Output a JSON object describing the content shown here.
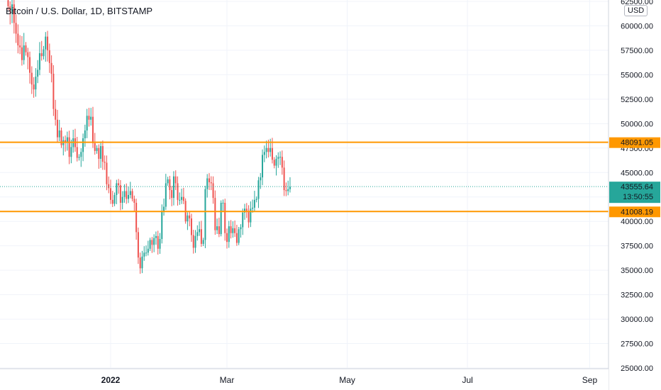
{
  "title": "Bitcoin / U.S. Dollar, 1D, BITSTAMP",
  "currency": "USD",
  "colors": {
    "up": "#26a69a",
    "down": "#ef5350",
    "hline": "#ff9800",
    "last": "#26a69a",
    "grid": "#f0f3fa"
  },
  "chart_data": {
    "type": "candlestick",
    "title": "Bitcoin / U.S. Dollar, 1D, BITSTAMP",
    "ylim": [
      25000,
      62500
    ],
    "y_ticks": [
      "62500.00",
      "60000.00",
      "57500.00",
      "55000.00",
      "52500.00",
      "50000.00",
      "47500.00",
      "45000.00",
      "42500.00",
      "40000.00",
      "37500.00",
      "35000.00",
      "32500.00",
      "30000.00",
      "27500.00",
      "25000.00"
    ],
    "x_ticks": [
      {
        "label": "2022",
        "date": "2022-01-01",
        "bold": true
      },
      {
        "label": "Mar",
        "date": "2022-03-01",
        "bold": false
      },
      {
        "label": "May",
        "date": "2022-05-01",
        "bold": false
      },
      {
        "label": "Jul",
        "date": "2022-07-01",
        "bold": false
      },
      {
        "label": "Sep",
        "date": "2022-09-01",
        "bold": false
      }
    ],
    "horizontal_lines": [
      {
        "price": "48091.05"
      },
      {
        "price": "41008.19"
      }
    ],
    "last_price": {
      "price": "43555.64",
      "countdown": "13:50:55"
    },
    "close_start": 62000,
    "close_dates_start": "2021-11-10",
    "closes": [
      62000,
      61500,
      62200,
      60300,
      59200,
      58000,
      57800,
      56500,
      58000,
      57300,
      56800,
      55200,
      54000,
      53500,
      54800,
      55500,
      57200,
      56900,
      57600,
      58900,
      57500,
      56200,
      55100,
      51500,
      50400,
      48600,
      49300,
      47800,
      48300,
      48100,
      48600,
      46600,
      47600,
      48500,
      47600,
      46500,
      46600,
      47100,
      48500,
      49300,
      50800,
      50400,
      50700,
      48000,
      47200,
      47500,
      46400,
      47700,
      46100,
      46000,
      43800,
      43400,
      42200,
      41800,
      42700,
      43900,
      43700,
      41900,
      42500,
      43100,
      42300,
      42700,
      43100,
      42300,
      41900,
      38900,
      36300,
      35200,
      36400,
      36800,
      36800,
      37200,
      38100,
      37600,
      38300,
      38500,
      37200,
      38200,
      41000,
      41500,
      43900,
      44300,
      43200,
      42400,
      44600,
      43900,
      42200,
      42200,
      42500,
      42100,
      40000,
      40600,
      40300,
      38600,
      37300,
      38500,
      38900,
      39200,
      37700,
      38100,
      43300,
      44400,
      44000,
      43900,
      42400,
      39100,
      39500,
      38700,
      41900,
      41900,
      38800,
      37900,
      39500,
      38800,
      39300,
      38800,
      37800,
      39200,
      39400,
      40900,
      41300,
      41000,
      39900,
      41300,
      41400,
      42200,
      42300,
      44200,
      44500,
      46800,
      47100,
      47500,
      47100,
      47500,
      46300,
      45700,
      46400,
      46600,
      46600,
      45500,
      43200,
      43100,
      43300,
      43555.64
    ]
  }
}
